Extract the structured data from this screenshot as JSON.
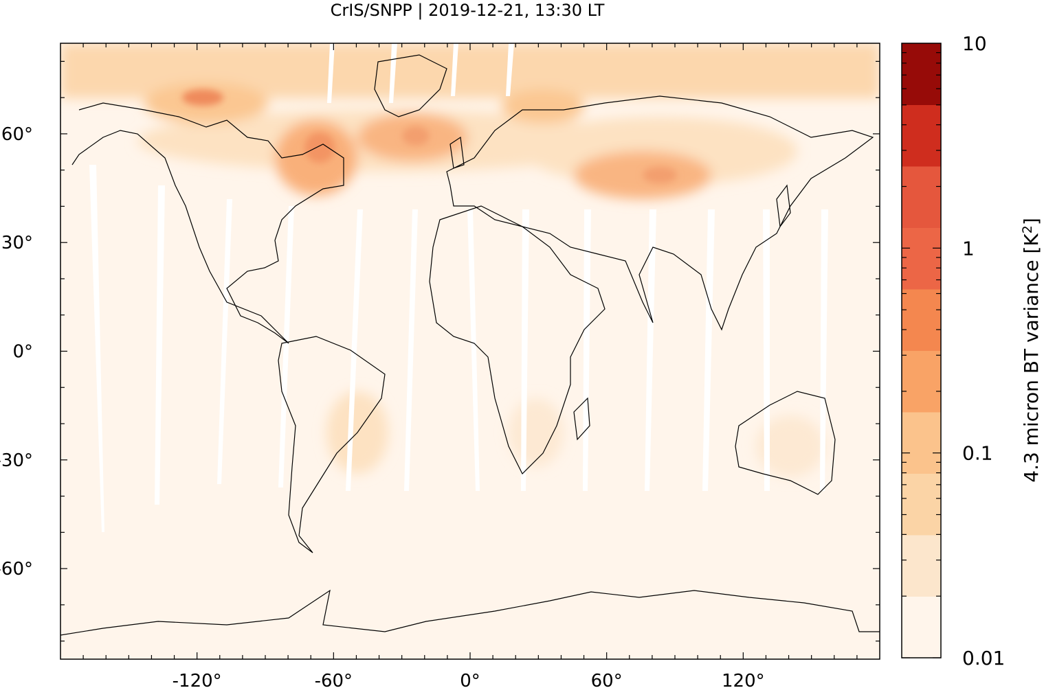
{
  "title": "CrIS/SNPP | 2019-12-21, 13:30 LT",
  "map": {
    "projection": "equirectangular",
    "lon_range": [
      -180,
      180
    ],
    "lat_range": [
      -85,
      85
    ],
    "x_ticks": [
      {
        "value": -120,
        "label": "-120°"
      },
      {
        "value": -60,
        "label": "-60°"
      },
      {
        "value": 0,
        "label": "0°"
      },
      {
        "value": 60,
        "label": "60°"
      },
      {
        "value": 120,
        "label": "120°"
      }
    ],
    "y_ticks": [
      {
        "value": 60,
        "label": "60°"
      },
      {
        "value": 30,
        "label": "30°"
      },
      {
        "value": 0,
        "label": "0°"
      },
      {
        "value": -30,
        "label": "-30°"
      },
      {
        "value": -60,
        "label": "-60°"
      }
    ],
    "colors": {
      "background": "#fff5eb",
      "levels": [
        "#fff5eb",
        "#fee6ce",
        "#fdd0a2",
        "#fdae6b",
        "#fd8d3c",
        "#f16913",
        "#d94801",
        "#a63603"
      ]
    }
  },
  "colorbar": {
    "label_prefix": "4.3 micron BT variance [K",
    "label_sup": "2",
    "label_suffix": "]",
    "scale": "log",
    "range": [
      0.01,
      10
    ],
    "tick_labels": [
      {
        "value": 10,
        "label": "10"
      },
      {
        "value": 1,
        "label": "1"
      },
      {
        "value": 0.1,
        "label": "0.1"
      },
      {
        "value": 0.01,
        "label": "0.01"
      }
    ],
    "bands": [
      "#fff5eb",
      "#fce6cc",
      "#fbd4a6",
      "#fbc38c",
      "#f9a366",
      "#f4874f",
      "#ec6646",
      "#e5573d",
      "#cf2d1e",
      "#970b08"
    ]
  }
}
